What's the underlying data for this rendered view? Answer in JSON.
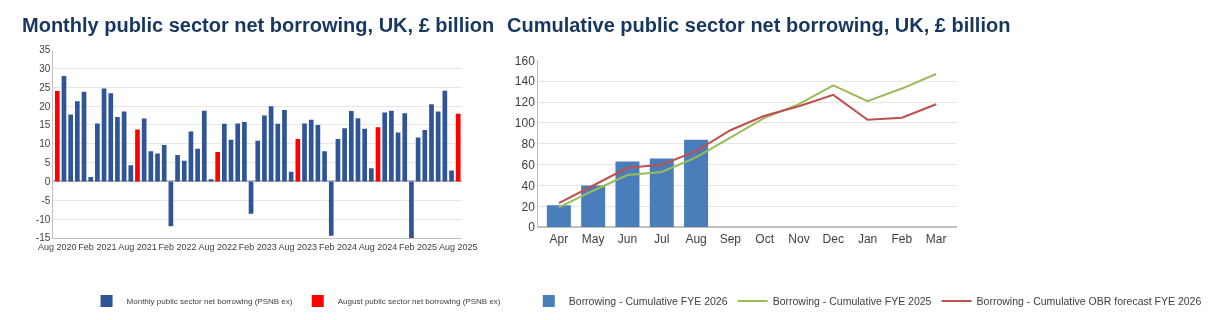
{
  "chart_data": [
    {
      "type": "bar",
      "title": "Monthly public sector net borrowing, UK, £ billion",
      "stacked": true,
      "grid": "y",
      "legend": "bottom",
      "ylim": [
        -15,
        35
      ],
      "yticks": [
        -15,
        -10,
        -5,
        0,
        5,
        10,
        15,
        20,
        25,
        30,
        35
      ],
      "categories": [
        "Aug 2020",
        null,
        null,
        null,
        null,
        null,
        "Feb 2021",
        null,
        null,
        null,
        null,
        null,
        "Aug 2021",
        null,
        null,
        null,
        null,
        null,
        "Feb 2022",
        null,
        null,
        null,
        null,
        null,
        "Aug 2022",
        null,
        null,
        null,
        null,
        null,
        "Feb 2023",
        null,
        null,
        null,
        null,
        null,
        "Aug 2023",
        null,
        null,
        null,
        null,
        null,
        "Feb 2024",
        null,
        null,
        null,
        null,
        null,
        "Aug 2024",
        null,
        null,
        null,
        null,
        null,
        "Feb 2025",
        null,
        null,
        null,
        null,
        null,
        "Aug 2025"
      ],
      "series": [
        {
          "name": "Monthly public sector net borrowing (PSNB ex)",
          "color": "#2f5597",
          "values": [
            null,
            28,
            17.8,
            21.3,
            23.8,
            1.2,
            15.4,
            24.7,
            23.4,
            17.1,
            18.6,
            4.3,
            null,
            16.7,
            8,
            7.4,
            9.7,
            -11.9,
            7,
            5.5,
            13.3,
            8.7,
            18.8,
            0.6,
            null,
            15.3,
            11.1,
            15.4,
            15.8,
            -8.6,
            10.8,
            17.5,
            20,
            15.3,
            19,
            2.6,
            null,
            15.4,
            16.4,
            15,
            8,
            -14.4,
            11.3,
            14.1,
            18.7,
            16.8,
            14,
            3.5,
            null,
            18.3,
            18.8,
            13,
            18.1,
            -15,
            11.7,
            13.7,
            20.5,
            18.6,
            24.1,
            2.9,
            null
          ]
        },
        {
          "name": "August public sector net borrowing (PSNB ex)",
          "color": "#ff0000",
          "values": [
            24,
            null,
            null,
            null,
            null,
            null,
            null,
            null,
            null,
            null,
            null,
            null,
            13.8,
            null,
            null,
            null,
            null,
            null,
            null,
            null,
            null,
            null,
            null,
            null,
            7.8,
            null,
            null,
            null,
            null,
            null,
            null,
            null,
            null,
            null,
            null,
            null,
            11.3,
            null,
            null,
            null,
            null,
            null,
            null,
            null,
            null,
            null,
            null,
            null,
            14.4,
            null,
            null,
            null,
            null,
            null,
            null,
            null,
            null,
            null,
            null,
            null,
            18
          ]
        }
      ]
    },
    {
      "type": "bar",
      "title": "Cumulative public sector net borrowing, UK, £ billion",
      "grid": "y",
      "legend": "bottom",
      "ylim": [
        0,
        160
      ],
      "yticks": [
        0,
        20,
        40,
        60,
        80,
        100,
        120,
        140,
        160
      ],
      "categories": [
        "Apr",
        "May",
        "Jun",
        "Jul",
        "Aug",
        "Sep",
        "Oct",
        "Nov",
        "Dec",
        "Jan",
        "Feb",
        "Mar"
      ],
      "series": [
        {
          "name": "Borrowing - Cumulative FYE 2026",
          "color": "#4a7ebb",
          "values": [
            21,
            40,
            63,
            66,
            84,
            null,
            null,
            null,
            null,
            null,
            null,
            null
          ]
        },
        {
          "name": "Borrowing - Cumulative FYE 2025",
          "type": "line",
          "color": "#9bbb59",
          "values": [
            19,
            35,
            50,
            53,
            67,
            86,
            105,
            118,
            136,
            121,
            133,
            147
          ]
        },
        {
          "name": "Borrowing - Cumulative OBR forecast FYE 2026",
          "type": "line",
          "color": "#c0504d",
          "values": [
            23,
            40,
            57,
            60,
            73,
            93,
            107,
            116,
            127,
            103,
            105,
            118
          ]
        }
      ]
    }
  ]
}
